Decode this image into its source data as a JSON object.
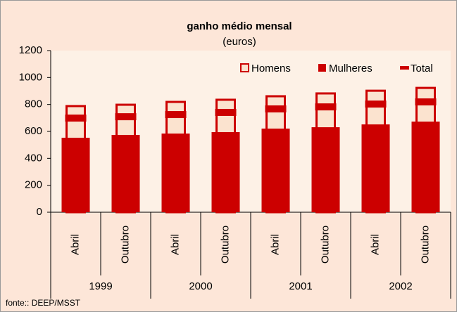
{
  "chart_data": {
    "type": "bar",
    "title": "ganho médio mensal",
    "subtitle": "(euros)",
    "categories": [
      "Abril",
      "Outubro",
      "Abril",
      "Outubro",
      "Abril",
      "Outubro",
      "Abril",
      "Outubro"
    ],
    "years": [
      "1999",
      "2000",
      "2001",
      "2002"
    ],
    "series": [
      {
        "name": "Homens",
        "color": "#cc0000",
        "values": [
          788,
          798,
          819,
          835,
          861,
          882,
          902,
          923
        ]
      },
      {
        "name": "Mulheres",
        "color": "#cc0000",
        "values": [
          553,
          574,
          584,
          595,
          621,
          631,
          652,
          673
        ]
      },
      {
        "name": "Total",
        "color": "#cc0000",
        "values": [
          699,
          709,
          725,
          741,
          767,
          782,
          803,
          819
        ]
      }
    ],
    "ylim": [
      0,
      1200
    ],
    "yticks": [
      0,
      200,
      400,
      600,
      800,
      1000,
      1200
    ],
    "source": "fonte:: DEEP/MSST"
  }
}
